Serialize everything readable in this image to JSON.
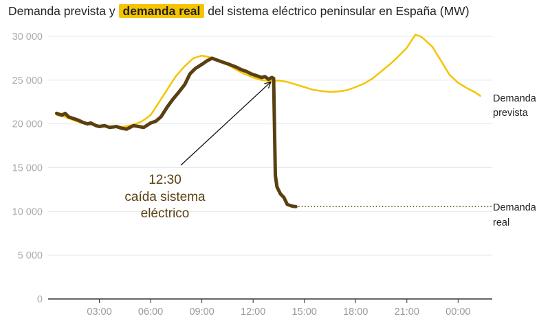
{
  "title": {
    "part1": "Demanda prevista y",
    "highlight": "demanda real",
    "part2": "del sistema eléctrico peninsular en España (MW)"
  },
  "chart_data": {
    "type": "line",
    "x_unit": "hours",
    "ylim": [
      0,
      30000
    ],
    "y_ticks": [
      {
        "value": 0,
        "label": "0"
      },
      {
        "value": 5000,
        "label": "5 000"
      },
      {
        "value": 10000,
        "label": "10 000"
      },
      {
        "value": 15000,
        "label": "15 000"
      },
      {
        "value": 20000,
        "label": "20 000"
      },
      {
        "value": 25000,
        "label": "25 000"
      },
      {
        "value": 30000,
        "label": "30 000"
      }
    ],
    "x_ticks": [
      {
        "value": 3,
        "label": "03:00"
      },
      {
        "value": 6,
        "label": "06:00"
      },
      {
        "value": 9,
        "label": "09:00"
      },
      {
        "value": 12,
        "label": "12:00"
      },
      {
        "value": 15,
        "label": "15:00"
      },
      {
        "value": 18,
        "label": "18:00"
      },
      {
        "value": 21,
        "label": "21:00"
      },
      {
        "value": 24,
        "label": "00:00"
      }
    ],
    "grid": true,
    "series": [
      {
        "name": "Demanda prevista",
        "label_lines": [
          "Demanda",
          "prevista"
        ],
        "color": "#f5c400",
        "points": [
          [
            0.5,
            21000
          ],
          [
            1,
            20800
          ],
          [
            1.5,
            20400
          ],
          [
            2,
            20100
          ],
          [
            2.5,
            19900
          ],
          [
            3,
            19800
          ],
          [
            3.5,
            19700
          ],
          [
            4,
            19600
          ],
          [
            4.5,
            19700
          ],
          [
            5,
            19900
          ],
          [
            5.5,
            20300
          ],
          [
            6,
            21000
          ],
          [
            6.5,
            22500
          ],
          [
            7,
            24000
          ],
          [
            7.5,
            25500
          ],
          [
            8,
            26600
          ],
          [
            8.5,
            27500
          ],
          [
            9,
            27800
          ],
          [
            9.5,
            27600
          ],
          [
            10,
            27200
          ],
          [
            10.5,
            26800
          ],
          [
            11,
            26200
          ],
          [
            11.5,
            25700
          ],
          [
            12,
            25300
          ],
          [
            12.5,
            25000
          ],
          [
            13,
            24900
          ],
          [
            13.5,
            24950
          ],
          [
            14,
            24800
          ],
          [
            14.5,
            24500
          ],
          [
            15,
            24200
          ],
          [
            15.5,
            23900
          ],
          [
            16,
            23750
          ],
          [
            16.5,
            23650
          ],
          [
            17,
            23700
          ],
          [
            17.5,
            23850
          ],
          [
            18,
            24200
          ],
          [
            18.5,
            24600
          ],
          [
            19,
            25200
          ],
          [
            19.5,
            26000
          ],
          [
            20,
            26800
          ],
          [
            20.5,
            27700
          ],
          [
            21,
            28700
          ],
          [
            21.3,
            29600
          ],
          [
            21.5,
            30200
          ],
          [
            21.8,
            30000
          ],
          [
            22,
            29700
          ],
          [
            22.5,
            28800
          ],
          [
            23,
            27200
          ],
          [
            23.5,
            25600
          ],
          [
            24,
            24700
          ],
          [
            24.5,
            24100
          ],
          [
            25,
            23600
          ],
          [
            25.3,
            23200
          ]
        ]
      },
      {
        "name": "Demanda real",
        "label_lines": [
          "Demanda",
          "real"
        ],
        "color": "#5a4010",
        "points": [
          [
            0.5,
            21200
          ],
          [
            0.8,
            21000
          ],
          [
            1,
            21200
          ],
          [
            1.2,
            20800
          ],
          [
            1.5,
            20600
          ],
          [
            1.8,
            20400
          ],
          [
            2,
            20200
          ],
          [
            2.3,
            20000
          ],
          [
            2.5,
            20100
          ],
          [
            2.8,
            19800
          ],
          [
            3,
            19700
          ],
          [
            3.3,
            19800
          ],
          [
            3.6,
            19600
          ],
          [
            4,
            19700
          ],
          [
            4.3,
            19500
          ],
          [
            4.6,
            19400
          ],
          [
            5,
            19800
          ],
          [
            5.3,
            19700
          ],
          [
            5.6,
            19600
          ],
          [
            6,
            20100
          ],
          [
            6.3,
            20300
          ],
          [
            6.6,
            20800
          ],
          [
            7,
            22000
          ],
          [
            7.3,
            22800
          ],
          [
            7.6,
            23500
          ],
          [
            8,
            24500
          ],
          [
            8.3,
            25700
          ],
          [
            8.6,
            26300
          ],
          [
            9,
            26800
          ],
          [
            9.3,
            27200
          ],
          [
            9.6,
            27500
          ],
          [
            10,
            27200
          ],
          [
            10.3,
            27000
          ],
          [
            10.6,
            26800
          ],
          [
            11,
            26500
          ],
          [
            11.3,
            26200
          ],
          [
            11.6,
            26000
          ],
          [
            11.9,
            25700
          ],
          [
            12.2,
            25500
          ],
          [
            12.5,
            25300
          ],
          [
            12.7,
            25400
          ],
          [
            12.9,
            25100
          ],
          [
            13.1,
            25300
          ],
          [
            13.2,
            25200
          ],
          [
            13.3,
            14100
          ],
          [
            13.4,
            12800
          ],
          [
            13.6,
            12000
          ],
          [
            13.8,
            11600
          ],
          [
            14,
            10800
          ],
          [
            14.3,
            10600
          ],
          [
            14.5,
            10550
          ]
        ],
        "extension_value": 10550
      }
    ],
    "annotation": {
      "lines": [
        "12:30",
        "caída sistema",
        "eléctrico"
      ],
      "target": [
        13.2,
        24800
      ]
    }
  }
}
